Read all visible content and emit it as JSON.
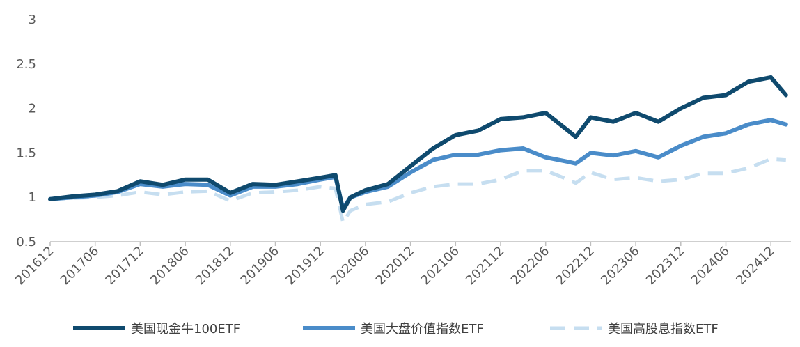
{
  "chart_data": {
    "type": "line",
    "title": "",
    "xlabel": "",
    "ylabel": "",
    "ylim": [
      0.5,
      3
    ],
    "yticks": [
      "0.5",
      "1",
      "1.5",
      "2",
      "2.5",
      "3"
    ],
    "x_tick_labels": [
      "201612",
      "201706",
      "201712",
      "201806",
      "201812",
      "201906",
      "201912",
      "202006",
      "202012",
      "202106",
      "202112",
      "202206",
      "202212",
      "202306",
      "202312",
      "202406",
      "202412"
    ],
    "grid": false,
    "legend_position": "bottom",
    "x": [
      "201612",
      "201703",
      "201706",
      "201709",
      "201712",
      "201803",
      "201806",
      "201809",
      "201812",
      "201903",
      "201906",
      "201909",
      "201912",
      "202002",
      "202003",
      "202004",
      "202006",
      "202009",
      "202012",
      "202103",
      "202106",
      "202109",
      "202112",
      "202203",
      "202206",
      "202209",
      "202210",
      "202212",
      "202303",
      "202306",
      "202309",
      "202312",
      "202403",
      "202406",
      "202409",
      "202412",
      "202502"
    ],
    "series": [
      {
        "name": "美国现金牛100ETF",
        "color": "#0f4a6e",
        "style": "solid",
        "values": [
          0.98,
          1.01,
          1.03,
          1.07,
          1.18,
          1.14,
          1.2,
          1.2,
          1.05,
          1.15,
          1.14,
          1.18,
          1.22,
          1.25,
          0.85,
          1.0,
          1.08,
          1.15,
          1.35,
          1.55,
          1.7,
          1.75,
          1.88,
          1.9,
          1.95,
          1.75,
          1.68,
          1.9,
          1.85,
          1.95,
          1.85,
          2.0,
          2.12,
          2.15,
          2.3,
          2.35,
          2.15
        ]
      },
      {
        "name": "美国大盘价值指数ETF",
        "color": "#4a8cc9",
        "style": "solid",
        "values": [
          0.98,
          1.0,
          1.02,
          1.06,
          1.15,
          1.12,
          1.15,
          1.14,
          1.02,
          1.12,
          1.12,
          1.15,
          1.2,
          1.23,
          0.87,
          1.0,
          1.06,
          1.12,
          1.28,
          1.42,
          1.48,
          1.48,
          1.53,
          1.55,
          1.45,
          1.4,
          1.38,
          1.5,
          1.47,
          1.52,
          1.45,
          1.58,
          1.68,
          1.72,
          1.82,
          1.87,
          1.82
        ]
      },
      {
        "name": "美国高股息指数ETF",
        "color": "#c6def0",
        "style": "dashed",
        "values": [
          0.98,
          0.99,
          1.0,
          1.02,
          1.06,
          1.03,
          1.06,
          1.07,
          0.96,
          1.05,
          1.06,
          1.08,
          1.12,
          1.1,
          0.72,
          0.85,
          0.92,
          0.95,
          1.05,
          1.12,
          1.15,
          1.15,
          1.2,
          1.3,
          1.3,
          1.2,
          1.16,
          1.28,
          1.2,
          1.22,
          1.18,
          1.2,
          1.27,
          1.27,
          1.33,
          1.43,
          1.42
        ]
      }
    ]
  }
}
